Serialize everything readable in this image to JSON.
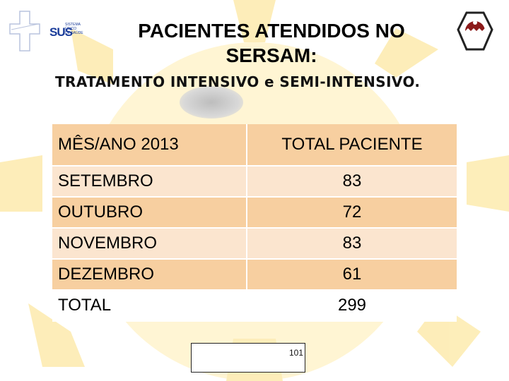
{
  "header": {
    "logo_text": "SUS",
    "logo_subtext": [
      "SISTEMA",
      "ÚNICO",
      "DE SAÚDE"
    ],
    "title_line1": "PACIENTES ATENDIDOS NO",
    "title_line2": "SERSAM:",
    "subtitle": "TRATAMENTO INTENSIVO e SEMI-INTENSIVO."
  },
  "table": {
    "headers": [
      "MÊS/ANO 2013",
      "TOTAL PACIENTE"
    ],
    "rows": [
      {
        "month": "SETEMBRO",
        "total": "83"
      },
      {
        "month": "OUTUBRO",
        "total": "72"
      },
      {
        "month": "NOVEMBRO",
        "total": "83"
      },
      {
        "month": "DEZEMBRO",
        "total": "61"
      }
    ],
    "total_label": "TOTAL",
    "total_value": "299"
  },
  "footer": {
    "page_number": "101"
  },
  "colors": {
    "header_fill": "#f7cfa0",
    "row_fill_alt": "#fbe5cf",
    "sun": "#fde9a8",
    "logo_blue": "#1a3c9a"
  }
}
